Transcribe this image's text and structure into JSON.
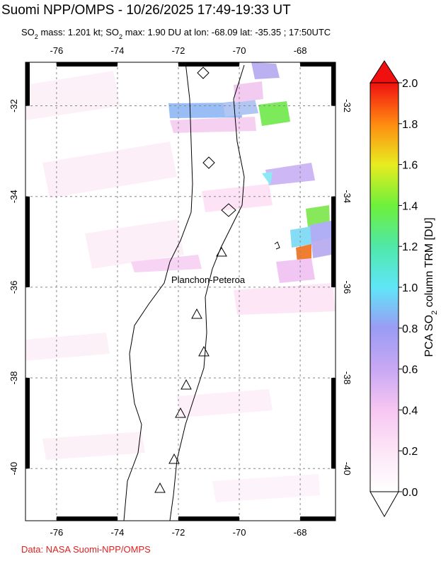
{
  "chart_data": {
    "type": "map",
    "title": "Suomi NPP/OMPS - 10/26/2025 17:49-19:33 UT",
    "subtitle": [
      "SO",
      "2",
      " mass: 1.201 kt; SO",
      "2",
      " max: 1.90 DU at lon: -68.09 lat: -35.35 ; 17:50UTC"
    ],
    "xlim": [
      -77.02,
      -66.84
    ],
    "ylim": [
      -31.04,
      -41.15
    ],
    "xticks": [
      -76,
      -74,
      -72,
      -70,
      -68
    ],
    "yticks": [
      -32,
      -34,
      -36,
      -38,
      -40
    ],
    "annotation": "Planchon-Peteroa",
    "colorbar": {
      "label": [
        "PCA SO",
        "2",
        " column TRM [DU]"
      ],
      "lim": [
        0,
        2
      ],
      "ticks": [
        {
          "value": 0,
          "label": "0.0"
        },
        {
          "value": 0.2,
          "label": "0.2"
        },
        {
          "value": 0.4,
          "label": "0.4"
        },
        {
          "value": 0.6,
          "label": "0.6"
        },
        {
          "value": 0.8,
          "label": "0.8"
        },
        {
          "value": 1,
          "label": "1.0"
        },
        {
          "value": 1.2,
          "label": "1.2"
        },
        {
          "value": 1.4,
          "label": "1.4"
        },
        {
          "value": 1.6,
          "label": "1.6"
        },
        {
          "value": 1.8,
          "label": "1.8"
        },
        {
          "value": 2,
          "label": "2.0"
        }
      ]
    },
    "source": "Data: NASA Suomi-NPP/OMPS"
  }
}
